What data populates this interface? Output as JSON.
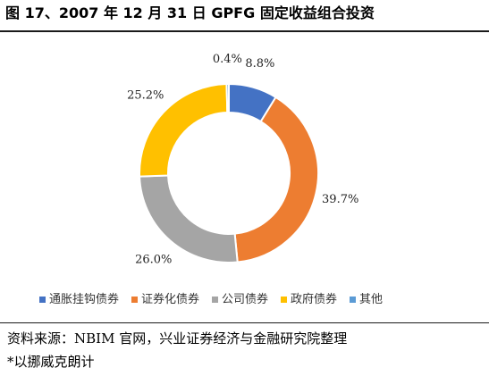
{
  "title": "图 17、2007 年 12 月 31 日 GPFG 固定收益组合投资",
  "source": "资料来源：NBIM 官网，兴业证券经济与金融研究院整理",
  "note": "*以挪威克朗计",
  "chart_data": {
    "type": "pie",
    "subtype": "donut",
    "start": "top",
    "direction": "clockwise",
    "legend_position": "bottom",
    "categories": [
      "通胀挂钩债券",
      "证券化债券",
      "公司债券",
      "政府债券",
      "其他"
    ],
    "values": [
      8.8,
      39.7,
      26.0,
      25.2,
      0.4
    ],
    "labels": [
      "8.8%",
      "39.7%",
      "26.0%",
      "25.2%",
      "0.4%"
    ],
    "colors": [
      "#4472C4",
      "#ED7D31",
      "#A5A5A5",
      "#FFC000",
      "#5B9BD5"
    ]
  }
}
